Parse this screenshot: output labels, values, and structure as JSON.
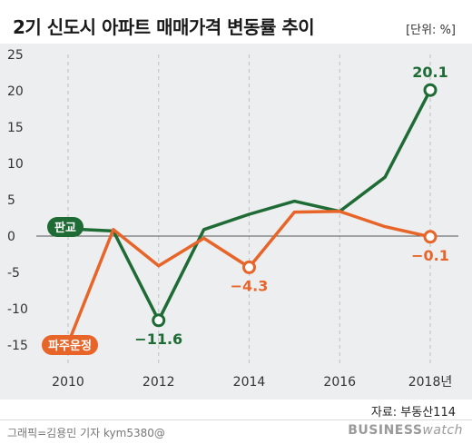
{
  "title": "2기 신도시 아파트 매매가격 변동률 추이",
  "unit": "[단위: %]",
  "source": "자료: 부동산114",
  "credit": "그래픽=김용민 기자 kym5380@",
  "brand": {
    "bold": "BUSINESS",
    "light": "watch"
  },
  "colors": {
    "pangyo": "#1e6b35",
    "paju": "#e8652a",
    "grid": "#bfbfbf",
    "zero": "#555555",
    "background": "#edeeef"
  },
  "chart_data": {
    "type": "line",
    "title": "2기 신도시 아파트 매매가격 변동률 추이",
    "ylim": [
      -15,
      25
    ],
    "yticks": [
      25,
      20,
      15,
      10,
      5,
      0,
      -5,
      -10,
      -15
    ],
    "ytick_labels": [
      "25",
      "20",
      "15",
      "10",
      "5",
      "0",
      "-5",
      "-10",
      "-15"
    ],
    "x": [
      2010,
      2011,
      2012,
      2013,
      2014,
      2015,
      2016,
      2017,
      2018
    ],
    "xticks": [
      2010,
      2012,
      2014,
      2016,
      2018
    ],
    "xtick_labels": [
      "2010",
      "2012",
      "2014",
      "2016",
      "2018년"
    ],
    "grid": "vertical dashed at labeled years",
    "series": [
      {
        "name": "판교",
        "color": "#1e6b35",
        "values": [
          1.0,
          0.7,
          -11.6,
          0.9,
          3.0,
          4.8,
          3.4,
          8.1,
          20.1
        ]
      },
      {
        "name": "파주운정",
        "color": "#e8652a",
        "values": [
          -14.8,
          0.9,
          -4.1,
          -0.3,
          -4.3,
          3.3,
          3.4,
          1.3,
          -0.1
        ]
      }
    ],
    "annotations": [
      {
        "series": 0,
        "index": 2,
        "text": "−11.6",
        "pos": "below"
      },
      {
        "series": 0,
        "index": 8,
        "text": "20.1",
        "pos": "above"
      },
      {
        "series": 1,
        "index": 4,
        "text": "−4.3",
        "pos": "below"
      },
      {
        "series": 1,
        "index": 8,
        "text": "−0.1",
        "pos": "below"
      }
    ]
  }
}
